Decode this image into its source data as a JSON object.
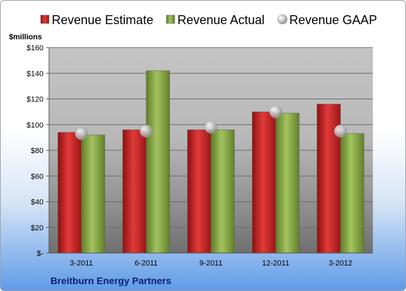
{
  "chart_data": {
    "type": "bar",
    "unit_label": "$millions",
    "categories": [
      "3-2011",
      "6-2011",
      "9-2011",
      "12-2011",
      "3-2012"
    ],
    "series": [
      {
        "name": "Revenue Estimate",
        "kind": "bar",
        "color": "#d42a2a",
        "values": [
          94,
          96,
          96,
          110,
          116
        ]
      },
      {
        "name": "Revenue Actual",
        "kind": "bar",
        "color": "#8fb04a",
        "values": [
          92,
          142,
          96,
          109,
          93
        ]
      },
      {
        "name": "Revenue GAAP",
        "kind": "marker",
        "color": "#c8c8c8",
        "values": [
          93,
          95,
          98,
          110,
          95
        ]
      }
    ],
    "ylim": [
      0,
      160
    ],
    "yticks": [
      0,
      20,
      40,
      60,
      80,
      100,
      120,
      140,
      160
    ],
    "ytick_labels": [
      "$-",
      "$20",
      "$40",
      "$60",
      "$80",
      "$100",
      "$120",
      "$140",
      "$160"
    ],
    "grid": true,
    "legend_position": "top"
  },
  "footer": {
    "company": "Breitburn Energy Partners"
  }
}
